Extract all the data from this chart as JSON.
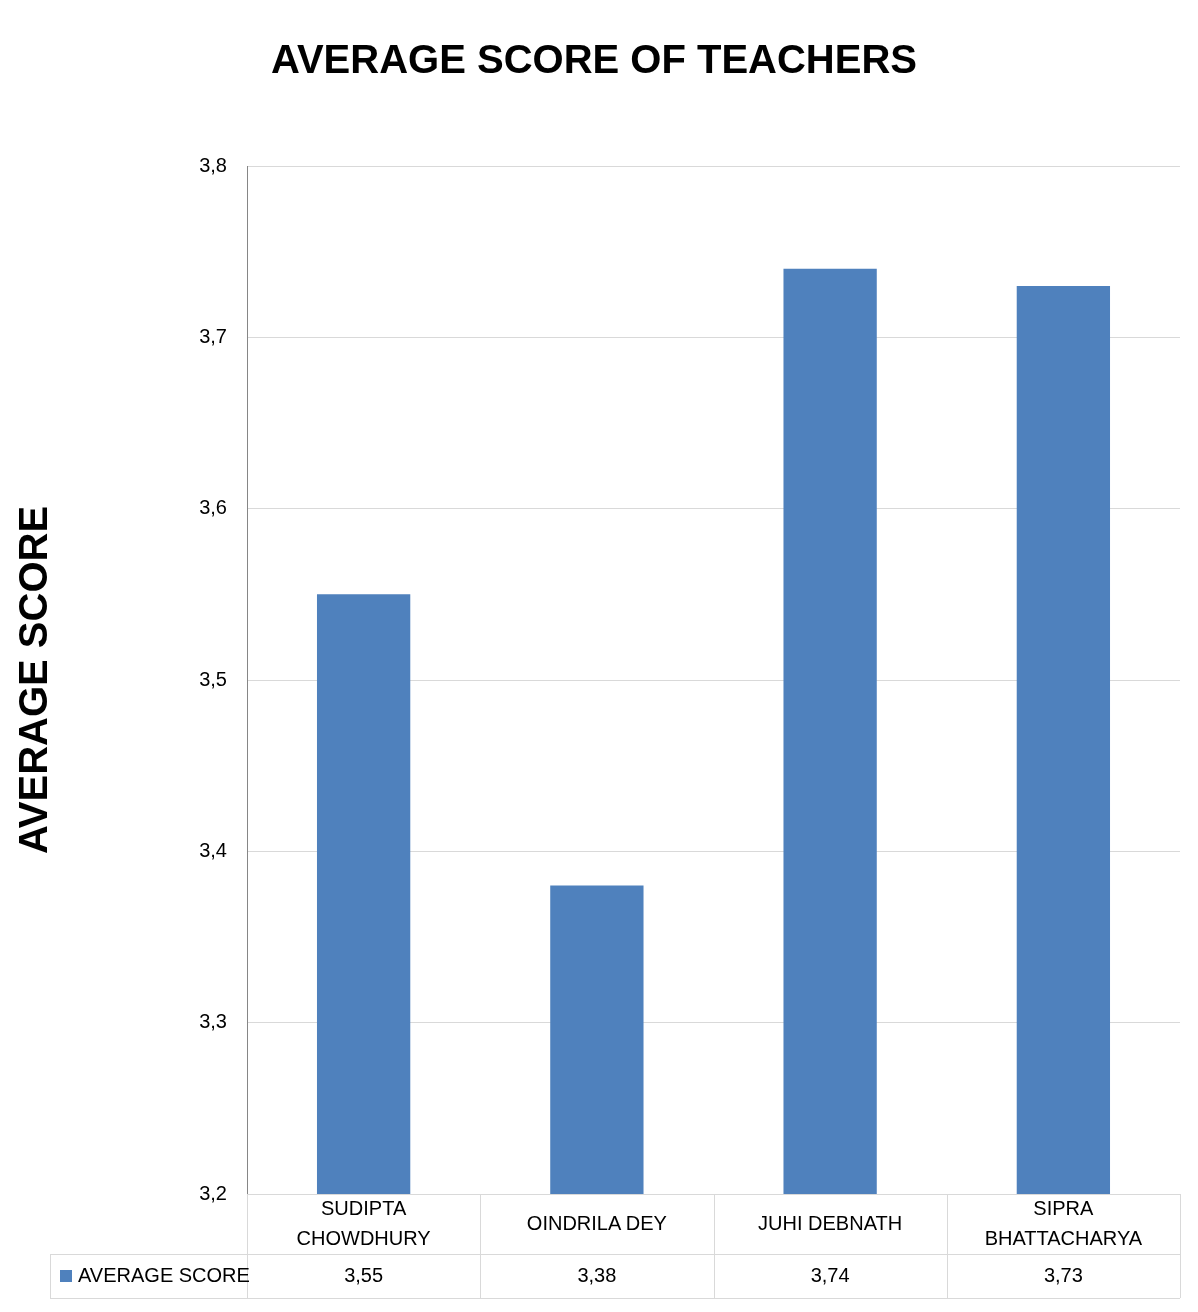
{
  "chart_data": {
    "type": "bar",
    "title": "AVERAGE SCORE OF TEACHERS",
    "ylabel": "AVERAGE SCORE",
    "categories": [
      "SUDIPTA CHOWDHURY",
      "OINDRILA DEY",
      "JUHI DEBNATH",
      "SIPRA BHATTACHARYA"
    ],
    "series": [
      {
        "name": "AVERAGE SCORE",
        "color": "#4f81bd",
        "values": [
          3.55,
          3.38,
          3.74,
          3.73
        ],
        "value_labels": [
          "3,55",
          "3,38",
          "3,74",
          "3,73"
        ]
      }
    ],
    "ylim": [
      3.2,
      3.8
    ],
    "yticks": [
      {
        "value": 3.2,
        "label": "3,2"
      },
      {
        "value": 3.3,
        "label": "3,3"
      },
      {
        "value": 3.4,
        "label": "3,4"
      },
      {
        "value": 3.5,
        "label": "3,5"
      },
      {
        "value": 3.6,
        "label": "3,6"
      },
      {
        "value": 3.7,
        "label": "3,7"
      },
      {
        "value": 3.8,
        "label": "3,8"
      }
    ],
    "grid": "y",
    "legend": "bottom"
  }
}
